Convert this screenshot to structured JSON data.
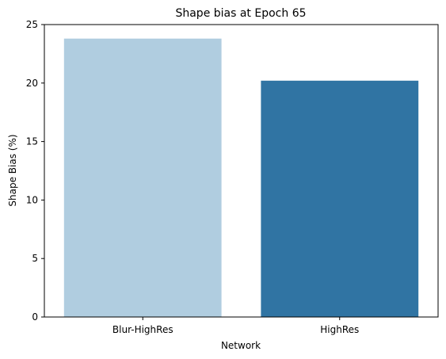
{
  "chart_data": {
    "type": "bar",
    "title": "Shape bias at Epoch 65",
    "xlabel": "Network",
    "ylabel": "Shape Bias (%)",
    "categories": [
      "Blur-HighRes",
      "HighRes"
    ],
    "values": [
      23.8,
      20.2
    ],
    "colors": [
      "#b0cde0",
      "#3074a3"
    ],
    "ylim": [
      0,
      25
    ],
    "yticks": [
      0,
      5,
      10,
      15,
      20,
      25
    ],
    "grid": false,
    "legend": "none"
  }
}
